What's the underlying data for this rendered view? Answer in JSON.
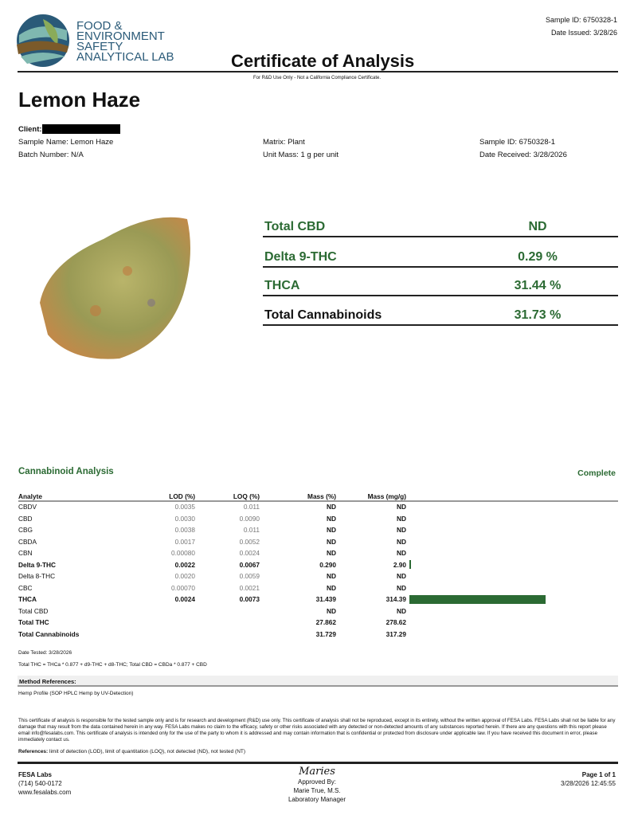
{
  "lab": {
    "logo_lines": [
      "FOOD &",
      "ENVIRONMENT",
      "SAFETY",
      "ANALYTICAL LAB"
    ],
    "name": "FESA Labs",
    "phone": "(714) 540-0172",
    "website": "www.fesalabs.com"
  },
  "header": {
    "sample_id": "Sample ID: 6750328-1",
    "date_issued": "Date Issued: 3/28/26",
    "title": "Certificate of Analysis",
    "note": "For R&D Use Only - Not a California Compliance Certificate."
  },
  "sample": {
    "name": "Lemon Haze",
    "client_label": "Client:",
    "sample_name": "Sample Name: Lemon Haze",
    "batch": "Batch Number: N/A",
    "matrix": "Matrix: Plant",
    "unit_mass": "Unit Mass: 1 g per unit",
    "sample_id": "Sample ID: 6750328-1",
    "date_received": "Date Received: 3/28/2026"
  },
  "summary": [
    {
      "label": "Total CBD",
      "value": "ND"
    },
    {
      "label": "Delta 9-THC",
      "value": "0.29 %"
    },
    {
      "label": "THCA",
      "value": "31.44 %"
    },
    {
      "label": "Total Cannabinoids",
      "value": "31.73 %"
    }
  ],
  "analysis": {
    "title": "Cannabinoid Analysis",
    "status": "Complete",
    "headers": [
      "Analyte",
      "LOD (%)",
      "LOQ (%)",
      "Mass (%)",
      "Mass (mg/g)"
    ],
    "rows": [
      [
        "CBDV",
        "0.0035",
        "0.011",
        "ND",
        "ND"
      ],
      [
        "CBD",
        "0.0030",
        "0.0090",
        "ND",
        "ND"
      ],
      [
        "CBG",
        "0.0038",
        "0.011",
        "ND",
        "ND"
      ],
      [
        "CBDA",
        "0.0017",
        "0.0052",
        "ND",
        "ND"
      ],
      [
        "CBN",
        "0.00080",
        "0.0024",
        "ND",
        "ND"
      ],
      [
        "Delta 9-THC",
        "0.0022",
        "0.0067",
        "0.290",
        "2.90"
      ],
      [
        "Delta 8-THC",
        "0.0020",
        "0.0059",
        "ND",
        "ND"
      ],
      [
        "CBC",
        "0.00070",
        "0.0021",
        "ND",
        "ND"
      ],
      [
        "THCA",
        "0.0024",
        "0.0073",
        "31.439",
        "314.39"
      ],
      [
        "Total CBD",
        "",
        "",
        "ND",
        "ND"
      ],
      [
        "Total THC",
        "",
        "",
        "27.862",
        "278.62"
      ],
      [
        "Total Cannabinoids",
        "",
        "",
        "31.729",
        "317.29"
      ]
    ],
    "bar_mg_g": [
      0,
      0,
      0,
      0,
      0,
      2.9,
      0,
      0,
      314.39,
      0,
      0,
      0
    ],
    "bar_color": "#2b6a33",
    "date_tested": "Date Tested: 3/28/2026",
    "formula": "Total THC = THCa * 0.877 + d9-THC + d8-THC; Total CBD = CBDa * 0.877 + CBD"
  },
  "method": {
    "title": "Method References:",
    "item": "Hemp Profile (SOP HPLC Hemp by UV-Detection)"
  },
  "disclaimer": "This certificate of analysis is responsible for the tested sample only and is for research and development (R&D) use only. This certificate of analysis shall not be reproduced, except in its entirety, without the written approval of FESA Labs. FESA Labs shall not be liable for any damage that may result from the data contained herein in any way. FESA Labs makes no claim to the efficacy, safety or other risks associated with any detected or non-detected amounts of any substances reported herein. If there are any questions with this report please email info@fesalabs.com. This certificate of analysis is intended only for the use of the party to whom it is addressed and may contain information that is confidential or protected from disclosure under applicable law. If you have received this document in error, please immediately contact us.",
  "references": {
    "label": "References:",
    "text": " limit of detection (LOD), limit of quantitation (LOQ), not detected (ND), not tested (NT)"
  },
  "footer": {
    "signature": "Maries",
    "approved": "Approved By:",
    "approver": "Marie True, M.S.",
    "role": "Laboratory Manager",
    "page": "Page 1 of 1",
    "timestamp": "3/28/2026 12:45:55"
  }
}
